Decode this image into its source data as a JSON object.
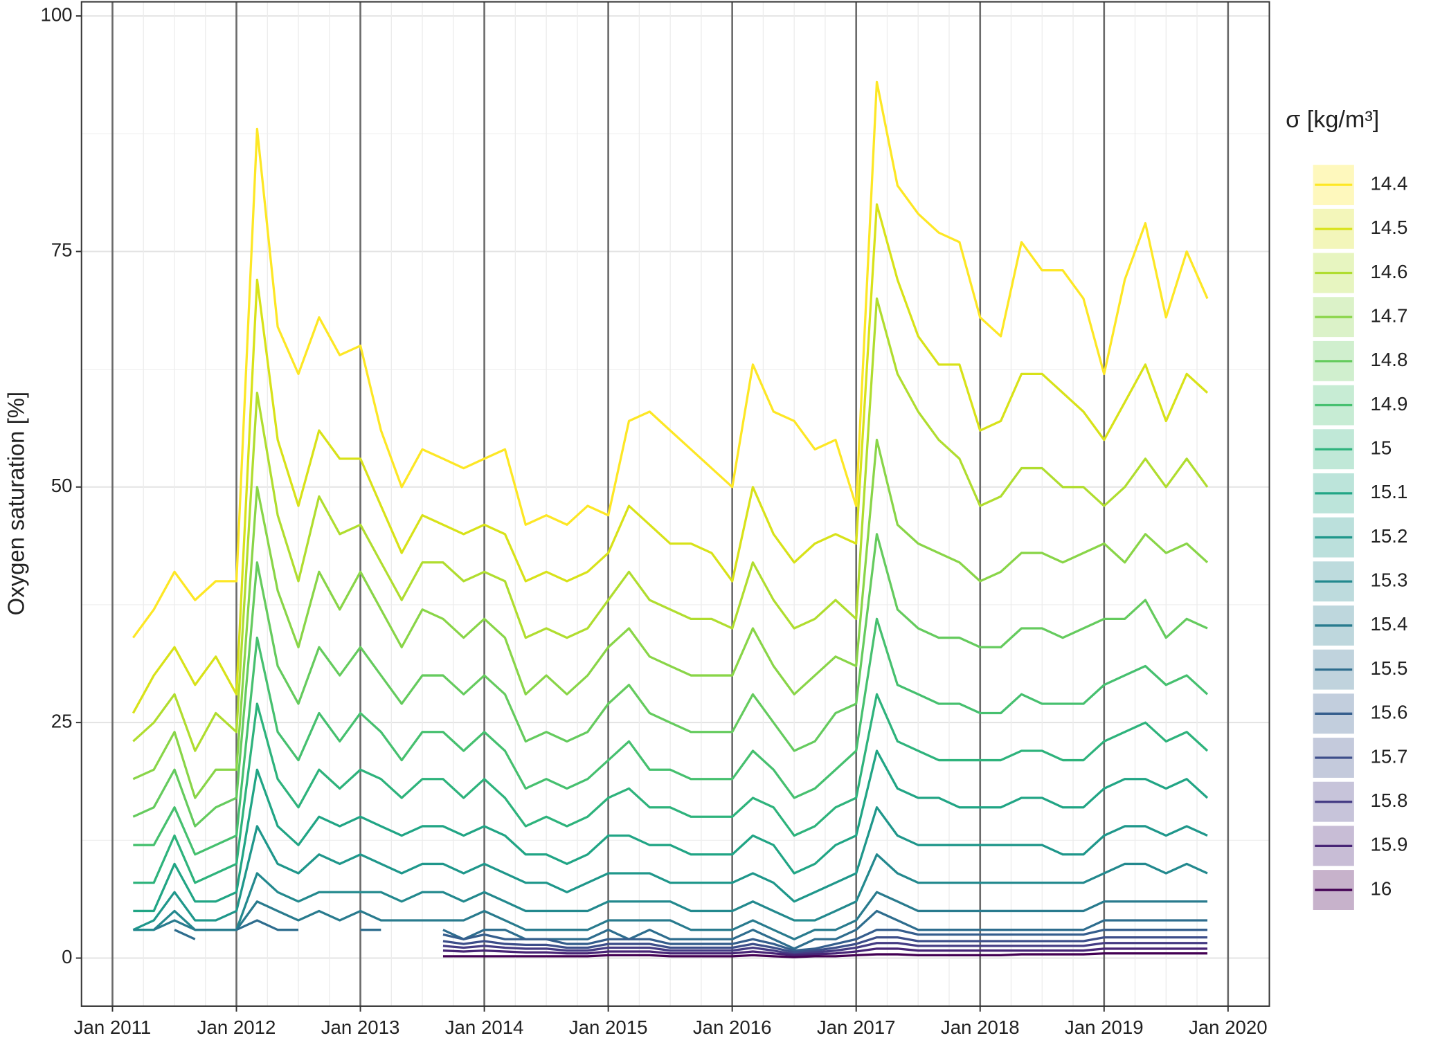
{
  "chart_data": {
    "type": "line",
    "y_label": "Oxygen saturation [%]",
    "legend_title": "σ [kg/m³]",
    "legend_position": "right",
    "grid": true,
    "x": [
      "2011-03",
      "2011-05",
      "2011-07",
      "2011-09",
      "2011-11",
      "2012-01",
      "2012-03",
      "2012-05",
      "2012-07",
      "2012-09",
      "2012-11",
      "2013-01",
      "2013-03",
      "2013-05",
      "2013-07",
      "2013-09",
      "2013-11",
      "2014-01",
      "2014-03",
      "2014-05",
      "2014-07",
      "2014-09",
      "2014-11",
      "2015-01",
      "2015-03",
      "2015-05",
      "2015-07",
      "2015-09",
      "2015-11",
      "2016-01",
      "2016-03",
      "2016-05",
      "2016-07",
      "2016-09",
      "2016-11",
      "2017-01",
      "2017-03",
      "2017-05",
      "2017-07",
      "2017-09",
      "2017-11",
      "2018-01",
      "2018-03",
      "2018-05",
      "2018-07",
      "2018-09",
      "2018-11",
      "2019-01",
      "2019-03",
      "2019-05",
      "2019-07",
      "2019-09",
      "2019-11"
    ],
    "xlim": [
      "2010-10",
      "2020-05"
    ],
    "xticks": [
      {
        "value": "2011-01",
        "label": "Jan 2011"
      },
      {
        "value": "2012-01",
        "label": "Jan 2012"
      },
      {
        "value": "2013-01",
        "label": "Jan 2013"
      },
      {
        "value": "2014-01",
        "label": "Jan 2014"
      },
      {
        "value": "2015-01",
        "label": "Jan 2015"
      },
      {
        "value": "2016-01",
        "label": "Jan 2016"
      },
      {
        "value": "2017-01",
        "label": "Jan 2017"
      },
      {
        "value": "2018-01",
        "label": "Jan 2018"
      },
      {
        "value": "2019-01",
        "label": "Jan 2019"
      },
      {
        "value": "2020-01",
        "label": "Jan 2020"
      }
    ],
    "ylim": [
      -5.1,
      101.5
    ],
    "yticks": [
      0,
      25,
      50,
      75,
      100
    ],
    "series": [
      {
        "name": "14.4",
        "color": "#FDE725",
        "values": [
          34,
          37,
          41,
          38,
          40,
          40,
          88,
          67,
          62,
          68,
          64,
          65,
          56,
          50,
          54,
          53,
          52,
          53,
          54,
          46,
          47,
          46,
          48,
          47,
          57,
          58,
          56,
          54,
          52,
          50,
          63,
          58,
          57,
          54,
          55,
          48,
          93,
          82,
          79,
          77,
          76,
          68,
          66,
          76,
          73,
          73,
          70,
          62,
          72,
          78,
          68,
          75,
          70
        ]
      },
      {
        "name": "14.5",
        "color": "#D8E219",
        "values": [
          26,
          30,
          33,
          29,
          32,
          28,
          72,
          55,
          48,
          56,
          53,
          53,
          48,
          43,
          47,
          46,
          45,
          46,
          45,
          40,
          41,
          40,
          41,
          43,
          48,
          46,
          44,
          44,
          43,
          40,
          50,
          45,
          42,
          44,
          45,
          44,
          80,
          72,
          66,
          63,
          63,
          56,
          57,
          62,
          62,
          60,
          58,
          55,
          59,
          63,
          57,
          62,
          60
        ]
      },
      {
        "name": "14.6",
        "color": "#B0DD2F",
        "values": [
          23,
          25,
          28,
          22,
          26,
          24,
          60,
          47,
          40,
          49,
          45,
          46,
          42,
          38,
          42,
          42,
          40,
          41,
          40,
          34,
          35,
          34,
          35,
          38,
          41,
          38,
          37,
          36,
          36,
          35,
          42,
          38,
          35,
          36,
          38,
          36,
          70,
          62,
          58,
          55,
          53,
          48,
          49,
          52,
          52,
          50,
          50,
          48,
          50,
          53,
          50,
          53,
          50
        ]
      },
      {
        "name": "14.7",
        "color": "#89D548",
        "values": [
          19,
          20,
          24,
          17,
          20,
          20,
          50,
          39,
          33,
          41,
          37,
          41,
          37,
          33,
          37,
          36,
          34,
          36,
          34,
          28,
          30,
          28,
          30,
          33,
          35,
          32,
          31,
          30,
          30,
          30,
          35,
          31,
          28,
          30,
          32,
          31,
          55,
          46,
          44,
          43,
          42,
          40,
          41,
          43,
          43,
          42,
          43,
          44,
          42,
          45,
          43,
          44,
          42
        ]
      },
      {
        "name": "14.8",
        "color": "#65CB5E",
        "values": [
          15,
          16,
          20,
          14,
          16,
          17,
          42,
          31,
          27,
          33,
          30,
          33,
          30,
          27,
          30,
          30,
          28,
          30,
          28,
          23,
          24,
          23,
          24,
          27,
          29,
          26,
          25,
          24,
          24,
          24,
          28,
          25,
          22,
          23,
          26,
          27,
          45,
          37,
          35,
          34,
          34,
          33,
          33,
          35,
          35,
          34,
          35,
          36,
          36,
          38,
          34,
          36,
          35
        ]
      },
      {
        "name": "14.9",
        "color": "#46C06F",
        "values": [
          12,
          12,
          16,
          11,
          12,
          13,
          34,
          24,
          21,
          26,
          23,
          26,
          24,
          21,
          24,
          24,
          22,
          24,
          22,
          18,
          19,
          18,
          19,
          21,
          23,
          20,
          20,
          19,
          19,
          19,
          22,
          20,
          17,
          18,
          20,
          22,
          36,
          29,
          28,
          27,
          27,
          26,
          26,
          28,
          27,
          27,
          27,
          29,
          30,
          31,
          29,
          30,
          28
        ]
      },
      {
        "name": "15",
        "color": "#2EB37C",
        "values": [
          8,
          8,
          13,
          8,
          9,
          10,
          27,
          19,
          16,
          20,
          18,
          20,
          19,
          17,
          19,
          19,
          17,
          19,
          17,
          14,
          15,
          14,
          15,
          17,
          18,
          16,
          16,
          15,
          15,
          15,
          17,
          16,
          13,
          14,
          16,
          17,
          28,
          23,
          22,
          21,
          21,
          21,
          21,
          22,
          22,
          21,
          21,
          23,
          24,
          25,
          23,
          24,
          22
        ]
      },
      {
        "name": "15.1",
        "color": "#21A585",
        "values": [
          5,
          5,
          10,
          6,
          6,
          7,
          20,
          14,
          12,
          15,
          14,
          15,
          14,
          13,
          14,
          14,
          13,
          14,
          13,
          11,
          11,
          10,
          11,
          13,
          13,
          12,
          12,
          11,
          11,
          11,
          13,
          12,
          9,
          10,
          12,
          13,
          22,
          18,
          17,
          17,
          16,
          16,
          16,
          17,
          17,
          16,
          16,
          18,
          19,
          19,
          18,
          19,
          17
        ]
      },
      {
        "name": "15.2",
        "color": "#1F978B",
        "values": [
          3,
          4,
          7,
          4,
          4,
          5,
          14,
          10,
          9,
          11,
          10,
          11,
          10,
          9,
          10,
          10,
          9,
          10,
          9,
          8,
          8,
          7,
          8,
          9,
          9,
          9,
          8,
          8,
          8,
          8,
          9,
          8,
          6,
          7,
          8,
          9,
          16,
          13,
          12,
          12,
          12,
          12,
          12,
          12,
          12,
          11,
          11,
          13,
          14,
          14,
          13,
          14,
          13
        ]
      },
      {
        "name": "15.3",
        "color": "#23898E",
        "values": [
          3,
          3,
          5,
          3,
          3,
          3,
          9,
          7,
          6,
          7,
          7,
          7,
          7,
          6,
          7,
          7,
          6,
          7,
          6,
          5,
          5,
          5,
          5,
          6,
          6,
          6,
          6,
          5,
          5,
          5,
          6,
          5,
          4,
          4,
          5,
          6,
          11,
          9,
          8,
          8,
          8,
          8,
          8,
          8,
          8,
          8,
          8,
          9,
          10,
          10,
          9,
          10,
          9
        ]
      },
      {
        "name": "15.4",
        "color": "#297B8E",
        "values": [
          null,
          3,
          4,
          3,
          3,
          3,
          6,
          5,
          4,
          5,
          4,
          5,
          4,
          4,
          4,
          4,
          4,
          5,
          4,
          3,
          3,
          3,
          3,
          4,
          4,
          4,
          4,
          3,
          3,
          3,
          4,
          3,
          2,
          3,
          3,
          4,
          7,
          6,
          5,
          5,
          5,
          5,
          5,
          5,
          5,
          5,
          5,
          6,
          6,
          6,
          6,
          6,
          6
        ]
      },
      {
        "name": "15.5",
        "color": "#2E6D8E",
        "values": [
          null,
          null,
          3,
          2,
          null,
          3,
          4,
          3,
          3,
          null,
          null,
          3,
          3,
          null,
          null,
          3,
          2,
          3,
          3,
          2,
          2,
          2,
          2,
          3,
          2,
          3,
          2,
          2,
          2,
          2,
          3,
          2,
          1,
          2,
          2,
          3,
          5,
          4,
          3,
          3,
          3,
          3,
          3,
          3,
          3,
          3,
          3,
          4,
          4,
          4,
          4,
          4,
          4
        ]
      },
      {
        "name": "15.6",
        "color": "#355E8D",
        "values": [
          null,
          null,
          null,
          null,
          null,
          null,
          null,
          null,
          null,
          null,
          null,
          null,
          null,
          null,
          null,
          2.5,
          2,
          2.5,
          2,
          2,
          2,
          1.5,
          1.5,
          2,
          2,
          2,
          1.5,
          1.5,
          1.5,
          1.5,
          2,
          1.5,
          0.8,
          1,
          1.5,
          2,
          3,
          3,
          2.5,
          2.5,
          2.5,
          2.5,
          2.5,
          2.5,
          2.5,
          2.5,
          2.5,
          3,
          3,
          3,
          3,
          3,
          3
        ]
      },
      {
        "name": "15.7",
        "color": "#3D4E8A",
        "values": [
          null,
          null,
          null,
          null,
          null,
          null,
          null,
          null,
          null,
          null,
          null,
          null,
          null,
          null,
          null,
          1.8,
          1.5,
          1.8,
          1.5,
          1.4,
          1.4,
          1.1,
          1.1,
          1.5,
          1.5,
          1.5,
          1.1,
          1.1,
          1.1,
          1.1,
          1.5,
          1.1,
          0.6,
          0.8,
          1.1,
          1.5,
          2.2,
          2.2,
          1.8,
          1.8,
          1.8,
          1.8,
          1.8,
          1.8,
          1.8,
          1.8,
          1.8,
          2.2,
          2.2,
          2.2,
          2.2,
          2.2,
          2.2
        ]
      },
      {
        "name": "15.8",
        "color": "#453C84",
        "values": [
          null,
          null,
          null,
          null,
          null,
          null,
          null,
          null,
          null,
          null,
          null,
          null,
          null,
          null,
          null,
          1.3,
          1.1,
          1.3,
          1.1,
          1,
          1,
          0.8,
          0.8,
          1.1,
          1.1,
          1.1,
          0.8,
          0.8,
          0.8,
          0.8,
          1.1,
          0.8,
          0.4,
          0.6,
          0.8,
          1.1,
          1.6,
          1.6,
          1.3,
          1.3,
          1.3,
          1.3,
          1.3,
          1.3,
          1.3,
          1.3,
          1.3,
          1.6,
          1.6,
          1.6,
          1.6,
          1.6,
          1.6
        ]
      },
      {
        "name": "15.9",
        "color": "#482576",
        "values": [
          null,
          null,
          null,
          null,
          null,
          null,
          null,
          null,
          null,
          null,
          null,
          null,
          null,
          null,
          null,
          0.8,
          0.7,
          0.8,
          0.7,
          0.6,
          0.6,
          0.5,
          0.5,
          0.7,
          0.7,
          0.7,
          0.5,
          0.5,
          0.5,
          0.5,
          0.7,
          0.5,
          0.3,
          0.4,
          0.5,
          0.7,
          1,
          1,
          0.8,
          0.8,
          0.8,
          0.8,
          0.8,
          0.8,
          0.8,
          0.8,
          0.8,
          1,
          1,
          1,
          1,
          1,
          1
        ]
      },
      {
        "name": "16",
        "color": "#440154",
        "values": [
          null,
          null,
          null,
          null,
          null,
          null,
          null,
          null,
          null,
          null,
          null,
          null,
          null,
          null,
          null,
          0.2,
          0.2,
          0.2,
          0.2,
          0.2,
          0.2,
          0.2,
          0.2,
          0.3,
          0.3,
          0.3,
          0.2,
          0.2,
          0.2,
          0.2,
          0.3,
          0.2,
          0.1,
          0.2,
          0.2,
          0.3,
          0.4,
          0.4,
          0.3,
          0.3,
          0.3,
          0.3,
          0.3,
          0.4,
          0.4,
          0.4,
          0.4,
          0.5,
          0.5,
          0.5,
          0.5,
          0.5,
          0.5
        ]
      }
    ]
  }
}
